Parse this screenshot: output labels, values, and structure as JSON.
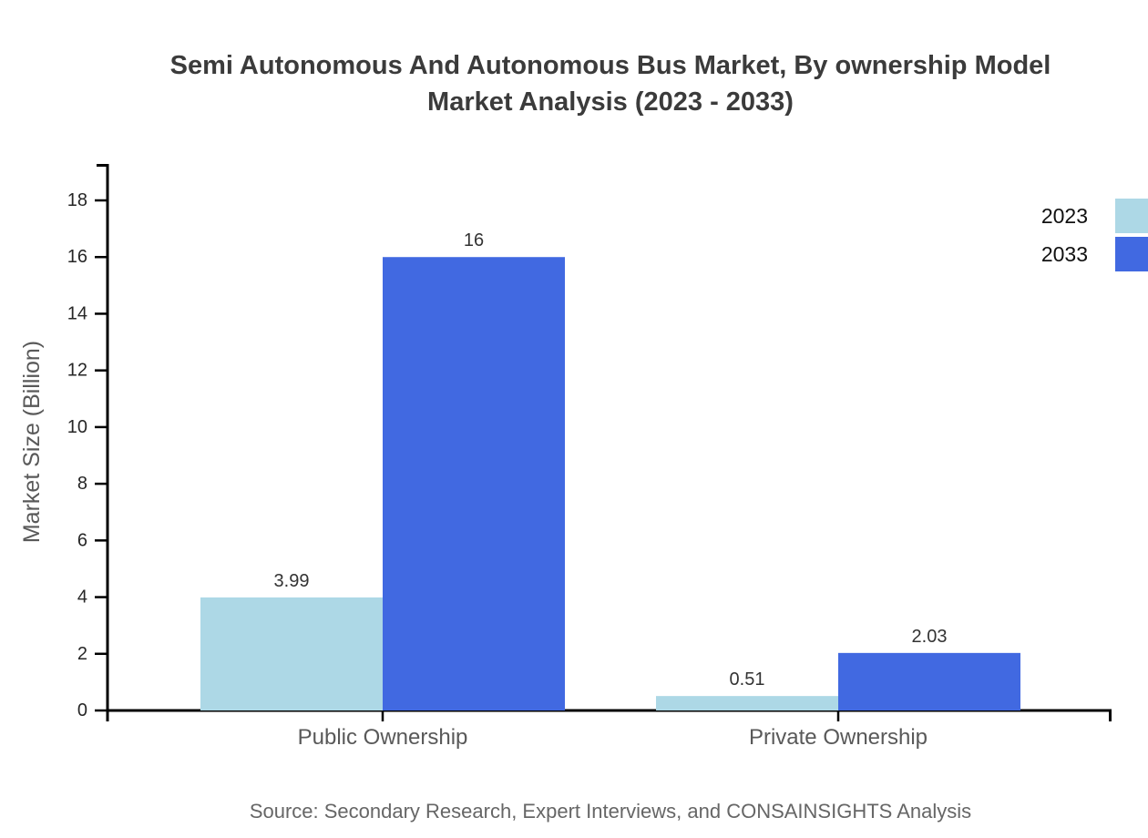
{
  "title": {
    "line1": "Semi Autonomous And Autonomous Bus Market, By ownership Model",
    "line2": "Market Analysis (2023 - 2033)"
  },
  "source": "Source: Secondary Research, Expert Interviews, and CONSAINSIGHTS Analysis",
  "chart_data": {
    "type": "bar",
    "title": "Semi Autonomous And Autonomous Bus Market, By ownership Model Market Analysis (2023 - 2033)",
    "categories": [
      "Public Ownership",
      "Private Ownership"
    ],
    "series": [
      {
        "name": "2023",
        "color": "#ADD8E6",
        "values": [
          3.99,
          0.51
        ],
        "labels": [
          "3.99",
          "0.51"
        ]
      },
      {
        "name": "2033",
        "color": "#4169E1",
        "values": [
          16,
          2.03
        ],
        "labels": [
          "16",
          "2.03"
        ]
      }
    ],
    "xlabel": "",
    "ylabel": "Market Size (Billion)",
    "ylim": [
      0,
      19.3
    ],
    "yticks": [
      0,
      2,
      4,
      6,
      8,
      10,
      12,
      14,
      16,
      18
    ],
    "grid": false,
    "legend_position": "top-right"
  },
  "colors": {
    "axis": "#000000",
    "title_text": "#3b3b3b",
    "category_text": "#595959",
    "tick_text": "#262626",
    "value_text": "#333333",
    "source_text": "#666666",
    "series_2023": "#ADD8E6",
    "series_2033": "#4169E1"
  }
}
